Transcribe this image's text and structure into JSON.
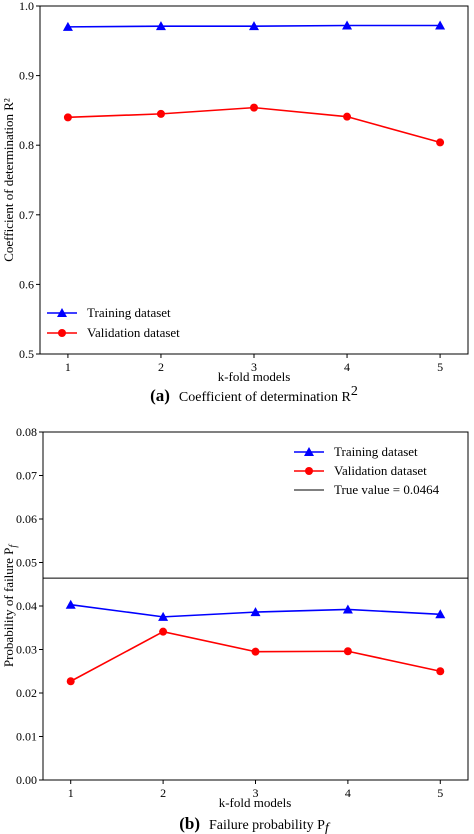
{
  "chart_data": [
    {
      "type": "line",
      "panel_label": "(a)",
      "caption": "Coefficient of determination R",
      "caption_superscript": "2",
      "xlabel": "k-fold models",
      "ylabel": "Coefficient of determination R²",
      "x": [
        1,
        2,
        3,
        4,
        5
      ],
      "xlim": [
        0.7,
        5.3
      ],
      "ylim": [
        0.5,
        1.0
      ],
      "yticks": [
        "0.5",
        "0.6",
        "0.7",
        "0.8",
        "0.9",
        "1.0"
      ],
      "xticks": [
        "1",
        "2",
        "3",
        "4",
        "5"
      ],
      "legend_position": "bottom-left",
      "series": [
        {
          "name": "Training dataset",
          "values": [
            0.97,
            0.971,
            0.971,
            0.972,
            0.972
          ],
          "color": "#0000ff",
          "marker": "triangle"
        },
        {
          "name": "Validation dataset",
          "values": [
            0.84,
            0.845,
            0.854,
            0.841,
            0.804
          ],
          "color": "#ff0000",
          "marker": "circle"
        }
      ]
    },
    {
      "type": "line",
      "panel_label": "(b)",
      "caption": "Failure probability P",
      "caption_subscript": "f",
      "xlabel": "k-fold models",
      "ylabel": "Probability of failure P",
      "ylabel_subscript": "f",
      "x": [
        1,
        2,
        3,
        4,
        5
      ],
      "xlim": [
        0.7,
        5.3
      ],
      "ylim": [
        0.0,
        0.08
      ],
      "yticks": [
        "0.00",
        "0.01",
        "0.02",
        "0.03",
        "0.04",
        "0.05",
        "0.06",
        "0.07",
        "0.08"
      ],
      "xticks": [
        "1",
        "2",
        "3",
        "4",
        "5"
      ],
      "legend_position": "top-right",
      "series": [
        {
          "name": "Training dataset",
          "values": [
            0.0403,
            0.0375,
            0.0386,
            0.0392,
            0.0381
          ],
          "color": "#0000ff",
          "marker": "triangle"
        },
        {
          "name": "Validation dataset",
          "values": [
            0.0227,
            0.0341,
            0.0295,
            0.0296,
            0.025
          ],
          "color": "#ff0000",
          "marker": "circle"
        }
      ],
      "reference_line": {
        "name": "True value = 0.0464",
        "value": 0.0464,
        "color": "#000000"
      }
    }
  ]
}
